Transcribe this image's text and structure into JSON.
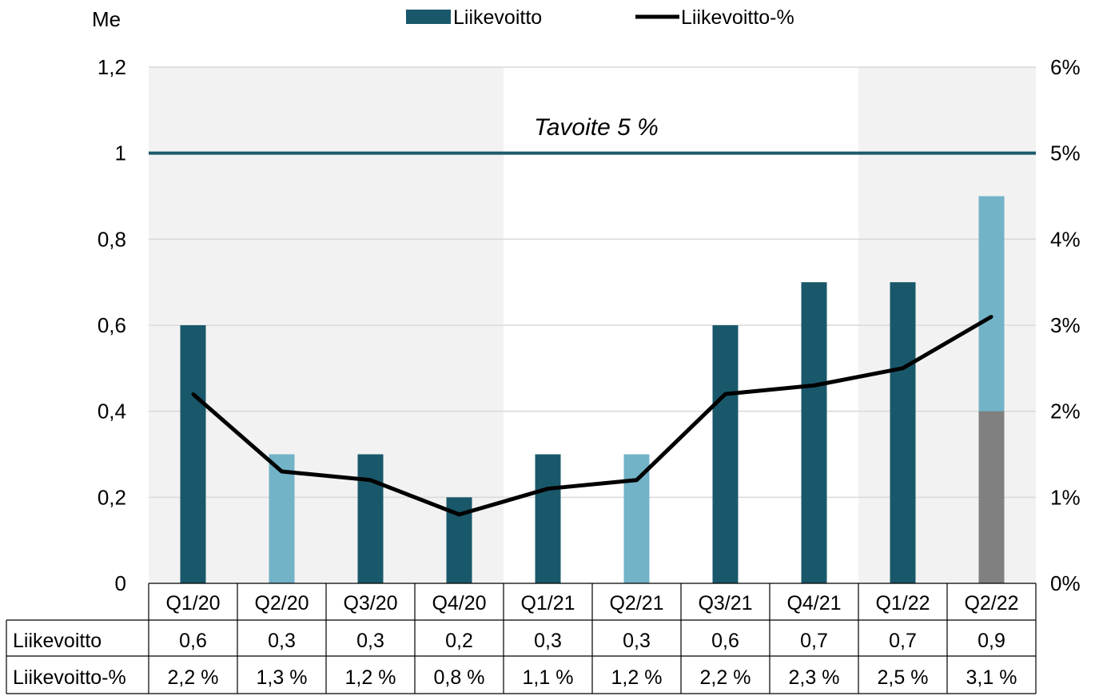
{
  "chart_data": {
    "type": "bar",
    "unit_left": "Me",
    "categories": [
      "Q1/20",
      "Q2/20",
      "Q3/20",
      "Q4/20",
      "Q1/21",
      "Q2/21",
      "Q3/21",
      "Q4/21",
      "Q1/22",
      "Q2/22"
    ],
    "y_left": {
      "ylim": [
        0,
        1.2
      ],
      "ticks": [
        "0",
        "0,2",
        "0,4",
        "0,6",
        "0,8",
        "1",
        "1,2"
      ]
    },
    "y_right": {
      "ylim": [
        0,
        6
      ],
      "ticks": [
        "0%",
        "1%",
        "2%",
        "3%",
        "4%",
        "5%",
        "6%"
      ]
    },
    "series": [
      {
        "name": "Liikevoitto",
        "type": "bar",
        "axis": "left",
        "values": [
          0.6,
          0.3,
          0.3,
          0.2,
          0.3,
          0.3,
          0.6,
          0.7,
          0.7,
          0.9
        ],
        "bar_colors": [
          "#19586a",
          "#72b3c8",
          "#19586a",
          "#19586a",
          "#19586a",
          "#72b3c8",
          "#19586a",
          "#19586a",
          "#19586a",
          "#72b3c8"
        ],
        "base_segment": {
          "category": "Q2/22",
          "value": 0.4,
          "color": "#808080"
        }
      },
      {
        "name": "Liikevoitto-%",
        "type": "line",
        "axis": "right",
        "values": [
          2.2,
          1.3,
          1.2,
          0.8,
          1.1,
          1.2,
          2.2,
          2.3,
          2.5,
          3.1
        ],
        "color": "#000000"
      }
    ],
    "target": {
      "label": "Tavoite 5 %",
      "value": 5,
      "axis": "right",
      "color": "#1d5a6b"
    },
    "shaded_bands": [
      {
        "from": "Q1/20",
        "to": "Q4/20",
        "color": "#f2f2f2"
      },
      {
        "from": "Q1/22",
        "to": "Q2/22",
        "color": "#f2f2f2"
      }
    ],
    "grid": true,
    "legend_position": "top",
    "table": {
      "row_labels": [
        "Liikevoitto",
        "Liikevoitto-%"
      ],
      "rows": [
        [
          "0,6",
          "0,3",
          "0,3",
          "0,2",
          "0,3",
          "0,3",
          "0,6",
          "0,7",
          "0,7",
          "0,9"
        ],
        [
          "2,2 %",
          "1,3 %",
          "1,2 %",
          "0,8 %",
          "1,1 %",
          "1,2 %",
          "2,2 %",
          "2,3 %",
          "2,5 %",
          "3,1 %"
        ]
      ]
    }
  }
}
